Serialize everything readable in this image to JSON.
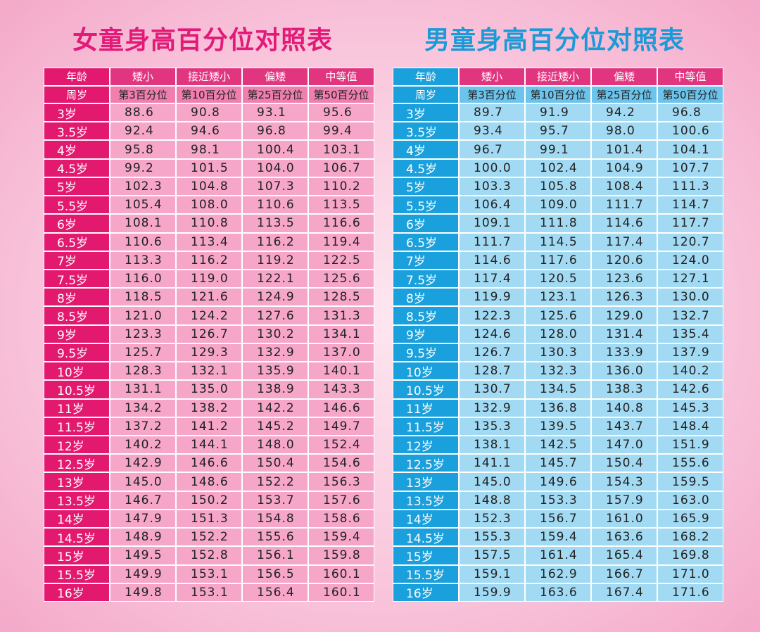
{
  "girls": {
    "title": "女童身高百分位对照表",
    "header": [
      [
        "年龄",
        "矮小",
        "接近矮小",
        "偏矮",
        "中等值"
      ],
      [
        "周岁",
        "第3百分位",
        "第10百分位",
        "第25百分位",
        "第50百分位"
      ]
    ],
    "rows": [
      [
        "3岁",
        "88.6",
        "90.8",
        "93.1",
        "95.6"
      ],
      [
        "3.5岁",
        "92.4",
        "94.6",
        "96.8",
        "99.4"
      ],
      [
        "4岁",
        "95.8",
        "98.1",
        "100.4",
        "103.1"
      ],
      [
        "4.5岁",
        "99.2",
        "101.5",
        "104.0",
        "106.7"
      ],
      [
        "5岁",
        "102.3",
        "104.8",
        "107.3",
        "110.2"
      ],
      [
        "5.5岁",
        "105.4",
        "108.0",
        "110.6",
        "113.5"
      ],
      [
        "6岁",
        "108.1",
        "110.8",
        "113.5",
        "116.6"
      ],
      [
        "6.5岁",
        "110.6",
        "113.4",
        "116.2",
        "119.4"
      ],
      [
        "7岁",
        "113.3",
        "116.2",
        "119.2",
        "122.5"
      ],
      [
        "7.5岁",
        "116.0",
        "119.0",
        "122.1",
        "125.6"
      ],
      [
        "8岁",
        "118.5",
        "121.6",
        "124.9",
        "128.5"
      ],
      [
        "8.5岁",
        "121.0",
        "124.2",
        "127.6",
        "131.3"
      ],
      [
        "9岁",
        "123.3",
        "126.7",
        "130.2",
        "134.1"
      ],
      [
        "9.5岁",
        "125.7",
        "129.3",
        "132.9",
        "137.0"
      ],
      [
        "10岁",
        "128.3",
        "132.1",
        "135.9",
        "140.1"
      ],
      [
        "10.5岁",
        "131.1",
        "135.0",
        "138.9",
        "143.3"
      ],
      [
        "11岁",
        "134.2",
        "138.2",
        "142.2",
        "146.6"
      ],
      [
        "11.5岁",
        "137.2",
        "141.2",
        "145.2",
        "149.7"
      ],
      [
        "12岁",
        "140.2",
        "144.1",
        "148.0",
        "152.4"
      ],
      [
        "12.5岁",
        "142.9",
        "146.6",
        "150.4",
        "154.6"
      ],
      [
        "13岁",
        "145.0",
        "148.6",
        "152.2",
        "156.3"
      ],
      [
        "13.5岁",
        "146.7",
        "150.2",
        "153.7",
        "157.6"
      ],
      [
        "14岁",
        "147.9",
        "151.3",
        "154.8",
        "158.6"
      ],
      [
        "14.5岁",
        "148.9",
        "152.2",
        "155.6",
        "159.4"
      ],
      [
        "15岁",
        "149.5",
        "152.8",
        "156.1",
        "159.8"
      ],
      [
        "15.5岁",
        "149.9",
        "153.1",
        "156.5",
        "160.1"
      ],
      [
        "16岁",
        "149.8",
        "153.1",
        "156.4",
        "160.1"
      ]
    ]
  },
  "boys": {
    "title": "男童身高百分位对照表",
    "header": [
      [
        "年龄",
        "矮小",
        "接近矮小",
        "偏矮",
        "中等值"
      ],
      [
        "周岁",
        "第3百分位",
        "第10百分位",
        "第25百分位",
        "第50百分位"
      ]
    ],
    "rows": [
      [
        "3岁",
        "89.7",
        "91.9",
        "94.2",
        "96.8"
      ],
      [
        "3.5岁",
        "93.4",
        "95.7",
        "98.0",
        "100.6"
      ],
      [
        "4岁",
        "96.7",
        "99.1",
        "101.4",
        "104.1"
      ],
      [
        "4.5岁",
        "100.0",
        "102.4",
        "104.9",
        "107.7"
      ],
      [
        "5岁",
        "103.3",
        "105.8",
        "108.4",
        "111.3"
      ],
      [
        "5.5岁",
        "106.4",
        "109.0",
        "111.7",
        "114.7"
      ],
      [
        "6岁",
        "109.1",
        "111.8",
        "114.6",
        "117.7"
      ],
      [
        "6.5岁",
        "111.7",
        "114.5",
        "117.4",
        "120.7"
      ],
      [
        "7岁",
        "114.6",
        "117.6",
        "120.6",
        "124.0"
      ],
      [
        "7.5岁",
        "117.4",
        "120.5",
        "123.6",
        "127.1"
      ],
      [
        "8岁",
        "119.9",
        "123.1",
        "126.3",
        "130.0"
      ],
      [
        "8.5岁",
        "122.3",
        "125.6",
        "129.0",
        "132.7"
      ],
      [
        "9岁",
        "124.6",
        "128.0",
        "131.4",
        "135.4"
      ],
      [
        "9.5岁",
        "126.7",
        "130.3",
        "133.9",
        "137.9"
      ],
      [
        "10岁",
        "128.7",
        "132.3",
        "136.0",
        "140.2"
      ],
      [
        "10.5岁",
        "130.7",
        "134.5",
        "138.3",
        "142.6"
      ],
      [
        "11岁",
        "132.9",
        "136.8",
        "140.8",
        "145.3"
      ],
      [
        "11.5岁",
        "135.3",
        "139.5",
        "143.7",
        "148.4"
      ],
      [
        "12岁",
        "138.1",
        "142.5",
        "147.0",
        "151.9"
      ],
      [
        "12.5岁",
        "141.1",
        "145.7",
        "150.4",
        "155.6"
      ],
      [
        "13岁",
        "145.0",
        "149.6",
        "154.3",
        "159.5"
      ],
      [
        "13.5岁",
        "148.8",
        "153.3",
        "157.9",
        "163.0"
      ],
      [
        "14岁",
        "152.3",
        "156.7",
        "161.0",
        "165.9"
      ],
      [
        "14.5岁",
        "155.3",
        "159.4",
        "163.6",
        "168.2"
      ],
      [
        "15岁",
        "157.5",
        "161.4",
        "165.4",
        "169.8"
      ],
      [
        "15.5岁",
        "159.1",
        "162.9",
        "166.7",
        "171.0"
      ],
      [
        "16岁",
        "159.9",
        "163.6",
        "167.4",
        "171.6"
      ]
    ]
  }
}
